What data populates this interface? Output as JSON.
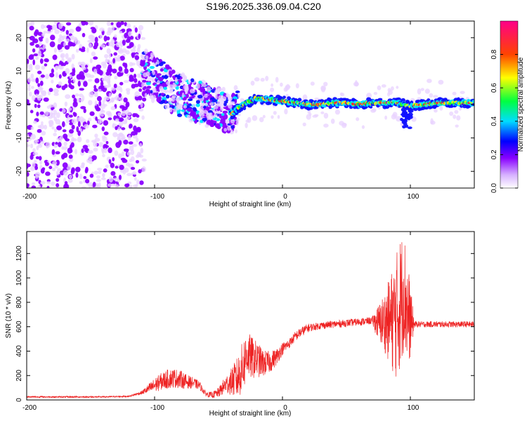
{
  "figure_title": "S196.2025.336.09.04.C20",
  "chart_data": [
    {
      "type": "heatmap",
      "xlabel": "Height of straight line (km)",
      "ylabel": "Frequency (Hz)",
      "xlim": [
        -200,
        150
      ],
      "ylim": [
        -25,
        25
      ],
      "xticks": [
        "-200",
        "-100",
        "0",
        "100"
      ],
      "xtick_values": [
        -200,
        -100,
        0,
        100
      ],
      "yticks": [
        "-20",
        "-10",
        "0",
        "10",
        "20"
      ],
      "ytick_values": [
        -20,
        -10,
        0,
        10,
        20
      ],
      "colorbar_label": "Normalized spectral amplitude",
      "colorbar_range": [
        0,
        1
      ],
      "colorbar_ticks": [
        "0.0",
        "0.2",
        "0.4",
        "0.6",
        "0.8"
      ],
      "colorbar_tick_values": [
        0,
        0.2,
        0.4,
        0.6,
        0.8
      ],
      "colormap": [
        "#ffffff",
        "#e6c8ff",
        "#8800ff",
        "#0000ff",
        "#00ffff",
        "#00ff00",
        "#ffff00",
        "#ff0000",
        "#ff0088"
      ],
      "ridge": {
        "x": [
          -110,
          -100,
          -90,
          -80,
          -70,
          -60,
          -50,
          -45,
          -40,
          -35,
          -30,
          -25,
          -20,
          -10,
          0,
          10,
          20,
          30,
          40,
          50,
          60,
          70,
          80,
          90,
          95,
          100,
          110,
          120,
          130,
          140,
          150
        ],
        "y": [
          10,
          8,
          5,
          3,
          1,
          0.5,
          -1,
          -2.5,
          -3,
          -1,
          0,
          1,
          2,
          1.5,
          1,
          0.5,
          0,
          0,
          0.5,
          0.5,
          0,
          0.5,
          0.5,
          0.5,
          0,
          -0.5,
          0,
          0.5,
          0.5,
          0.5,
          0.5
        ]
      }
    },
    {
      "type": "line",
      "xlabel": "Height of straight line (km)",
      "ylabel": "SNR (10 * v/v)",
      "xlim": [
        -200,
        150
      ],
      "ylim": [
        0,
        1380
      ],
      "xticks": [
        "-200",
        "-100",
        "0",
        "100"
      ],
      "xtick_values": [
        -200,
        -100,
        0,
        100
      ],
      "yticks": [
        "0",
        "200",
        "400",
        "600",
        "800",
        "1000",
        "1200"
      ],
      "ytick_values": [
        0,
        200,
        400,
        600,
        800,
        1000,
        1200
      ],
      "series": [
        {
          "color": "#ee2222",
          "x": [
            -200,
            -180,
            -160,
            -140,
            -120,
            -110,
            -100,
            -95,
            -90,
            -85,
            -80,
            -75,
            -70,
            -65,
            -60,
            -55,
            -50,
            -45,
            -40,
            -35,
            -30,
            -28,
            -25,
            -20,
            -15,
            -10,
            -5,
            0,
            5,
            10,
            15,
            20,
            25,
            30,
            40,
            50,
            60,
            70,
            75,
            80,
            85,
            90,
            92,
            95,
            98,
            100,
            103,
            105,
            110,
            120,
            130,
            140,
            150
          ],
          "y": [
            25,
            25,
            25,
            25,
            30,
            60,
            120,
            150,
            170,
            180,
            170,
            150,
            140,
            120,
            50,
            40,
            60,
            120,
            150,
            180,
            300,
            380,
            350,
            330,
            300,
            310,
            350,
            420,
            460,
            520,
            560,
            590,
            600,
            610,
            620,
            630,
            640,
            650,
            630,
            640,
            650,
            700,
            800,
            900,
            700,
            650,
            620,
            620,
            620,
            620,
            620,
            620,
            620
          ],
          "amplitude": [
            6,
            6,
            6,
            6,
            6,
            15,
            60,
            70,
            80,
            80,
            75,
            60,
            45,
            35,
            20,
            25,
            40,
            70,
            110,
            180,
            220,
            200,
            180,
            150,
            110,
            90,
            70,
            50,
            40,
            40,
            40,
            35,
            30,
            30,
            30,
            30,
            30,
            30,
            150,
            250,
            400,
            550,
            550,
            500,
            450,
            300,
            30,
            25,
            25,
            25,
            25,
            25,
            25
          ]
        }
      ]
    }
  ]
}
